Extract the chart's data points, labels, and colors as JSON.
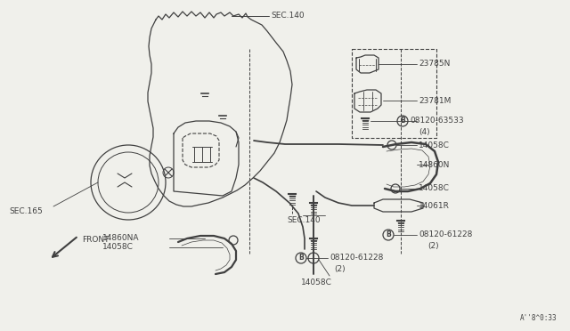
{
  "bg_color": "#f0f0eb",
  "line_color": "#404040",
  "text_color": "#404040",
  "diagram_ref": "A''8^0:33",
  "labels": {
    "SEC140_top": "SEC.140",
    "SEC165": "SEC.165",
    "SEC140_mid": "SEC.140",
    "FRONT": "FRONT",
    "23785N": "23785N",
    "23781M": "23781M",
    "08120_63533": "08120-63533",
    "63533_4": "(4)",
    "14058C_1": "14058C",
    "14860N": "14860N",
    "14058C_2": "14058C",
    "14061R": "14061R",
    "08120_61228_1": "08120-61228",
    "61228_1_2": "(2)",
    "08120_61228_2": "08120-61228",
    "61228_2_2": "(2)",
    "14860NA": "14860NA",
    "14058C_3": "14058C",
    "14058C_bot": "14058C"
  }
}
